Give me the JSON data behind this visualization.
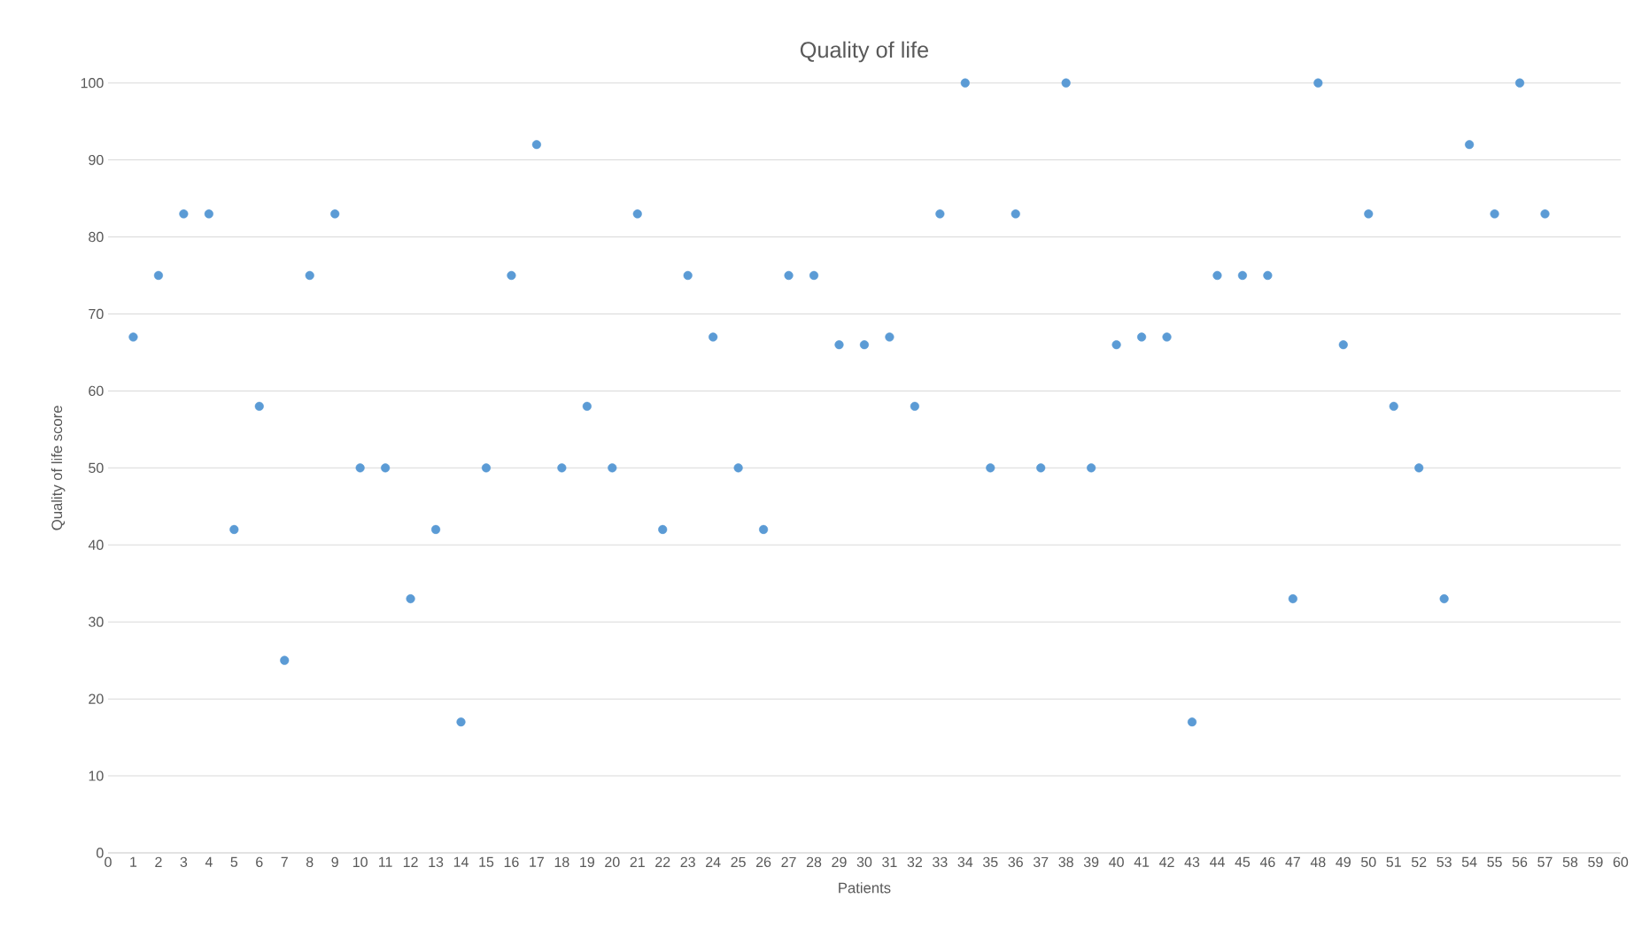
{
  "chart_data": {
    "type": "scatter",
    "title": "Quality of life",
    "xlabel": "Patients",
    "ylabel": "Quality of life score",
    "x": [
      1,
      2,
      3,
      4,
      5,
      6,
      7,
      8,
      9,
      10,
      11,
      12,
      13,
      14,
      15,
      16,
      17,
      18,
      19,
      20,
      21,
      22,
      23,
      24,
      25,
      26,
      27,
      28,
      29,
      30,
      31,
      32,
      33,
      34,
      35,
      36,
      37,
      38,
      39,
      40,
      41,
      42,
      43,
      44,
      45,
      46,
      47,
      48,
      49,
      50,
      51,
      52,
      53,
      54,
      55,
      56,
      57
    ],
    "values": [
      67,
      75,
      83,
      83,
      42,
      58,
      25,
      75,
      83,
      50,
      50,
      33,
      42,
      17,
      50,
      75,
      92,
      50,
      58,
      50,
      83,
      42,
      75,
      67,
      50,
      42,
      75,
      75,
      66,
      66,
      67,
      58,
      83,
      100,
      50,
      83,
      50,
      100,
      50,
      66,
      67,
      67,
      17,
      75,
      75,
      75,
      33,
      100,
      66,
      83,
      58,
      50,
      33,
      92,
      83,
      100,
      83
    ],
    "color": "#5b9bd5",
    "marker": "circle",
    "xlim": [
      0,
      60
    ],
    "ylim": [
      0,
      100
    ],
    "xticks": [
      0,
      1,
      2,
      3,
      4,
      5,
      6,
      7,
      8,
      9,
      10,
      11,
      12,
      13,
      14,
      15,
      16,
      17,
      18,
      19,
      20,
      21,
      22,
      23,
      24,
      25,
      26,
      27,
      28,
      29,
      30,
      31,
      32,
      33,
      34,
      35,
      36,
      37,
      38,
      39,
      40,
      41,
      42,
      43,
      44,
      45,
      46,
      47,
      48,
      49,
      50,
      51,
      52,
      53,
      54,
      55,
      56,
      57,
      58,
      59,
      60
    ],
    "yticks": [
      0,
      10,
      20,
      30,
      40,
      50,
      60,
      70,
      80,
      90,
      100
    ],
    "grid": "y"
  }
}
